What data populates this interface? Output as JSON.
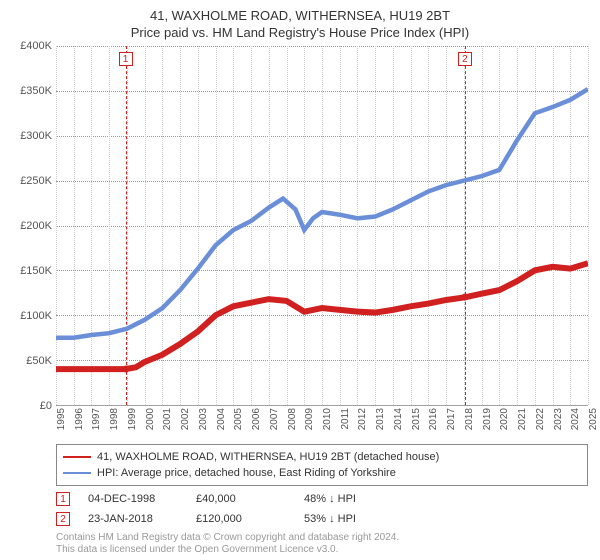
{
  "title_line1": "41, WAXHOLME ROAD, WITHERNSEA, HU19 2BT",
  "title_line2": "Price paid vs. HM Land Registry's House Price Index (HPI)",
  "chart": {
    "type": "line",
    "background_color": "#ffffff",
    "grid_color": "#cccccc",
    "grid_h_color": "#999999",
    "text_color": "#555555",
    "y_axis": {
      "min": 0,
      "max": 400000,
      "tick_step": 50000,
      "ticks": [
        "£0",
        "£50K",
        "£100K",
        "£150K",
        "£200K",
        "£250K",
        "£300K",
        "£350K",
        "£400K"
      ]
    },
    "x_axis": {
      "min": 1995,
      "max": 2025,
      "ticks": [
        1995,
        1996,
        1997,
        1998,
        1999,
        2000,
        2001,
        2002,
        2003,
        2004,
        2005,
        2006,
        2007,
        2008,
        2009,
        2010,
        2011,
        2012,
        2013,
        2014,
        2015,
        2016,
        2017,
        2018,
        2019,
        2020,
        2021,
        2022,
        2023,
        2024,
        2025
      ]
    },
    "series": [
      {
        "name": "price_paid",
        "label": "41, WAXHOLME ROAD, WITHERNSEA, HU19 2BT (detached house)",
        "color": "#d02020",
        "line_width": 2,
        "data": [
          [
            1995,
            40000
          ],
          [
            1996,
            40000
          ],
          [
            1997,
            40000
          ],
          [
            1998,
            40000
          ],
          [
            1998.9,
            40000
          ],
          [
            1999.5,
            42000
          ],
          [
            2000,
            48000
          ],
          [
            2001,
            56000
          ],
          [
            2002,
            68000
          ],
          [
            2003,
            82000
          ],
          [
            2004,
            100000
          ],
          [
            2005,
            110000
          ],
          [
            2006,
            114000
          ],
          [
            2007,
            118000
          ],
          [
            2008,
            116000
          ],
          [
            2009,
            104000
          ],
          [
            2010,
            108000
          ],
          [
            2011,
            106000
          ],
          [
            2012,
            104000
          ],
          [
            2013,
            103000
          ],
          [
            2014,
            106000
          ],
          [
            2015,
            110000
          ],
          [
            2016,
            113000
          ],
          [
            2017,
            117000
          ],
          [
            2018.06,
            120000
          ],
          [
            2019,
            124000
          ],
          [
            2020,
            128000
          ],
          [
            2021,
            138000
          ],
          [
            2022,
            150000
          ],
          [
            2023,
            154000
          ],
          [
            2024,
            152000
          ],
          [
            2025,
            158000
          ]
        ]
      },
      {
        "name": "hpi",
        "label": "HPI: Average price, detached house, East Riding of Yorkshire",
        "color": "#6a8fd8",
        "line_width": 1.5,
        "data": [
          [
            1995,
            75000
          ],
          [
            1996,
            75000
          ],
          [
            1997,
            78000
          ],
          [
            1998,
            80000
          ],
          [
            1999,
            85000
          ],
          [
            2000,
            95000
          ],
          [
            2001,
            108000
          ],
          [
            2002,
            128000
          ],
          [
            2003,
            152000
          ],
          [
            2004,
            178000
          ],
          [
            2005,
            195000
          ],
          [
            2006,
            205000
          ],
          [
            2007,
            220000
          ],
          [
            2007.8,
            230000
          ],
          [
            2008.5,
            218000
          ],
          [
            2009,
            195000
          ],
          [
            2009.5,
            208000
          ],
          [
            2010,
            215000
          ],
          [
            2011,
            212000
          ],
          [
            2012,
            208000
          ],
          [
            2013,
            210000
          ],
          [
            2014,
            218000
          ],
          [
            2015,
            228000
          ],
          [
            2016,
            238000
          ],
          [
            2017,
            245000
          ],
          [
            2018,
            250000
          ],
          [
            2019,
            255000
          ],
          [
            2020,
            262000
          ],
          [
            2021,
            295000
          ],
          [
            2022,
            325000
          ],
          [
            2023,
            332000
          ],
          [
            2024,
            340000
          ],
          [
            2025,
            352000
          ]
        ]
      }
    ],
    "sale_markers": [
      {
        "id": "1",
        "year": 1998.92,
        "price": 40000
      },
      {
        "id": "2",
        "year": 2018.06,
        "price": 120000
      }
    ],
    "marker_style": {
      "border_color": "#d02020",
      "text_color": "#d02020",
      "line_dash": "4,3"
    }
  },
  "legend": {
    "border_color": "#888888",
    "items": [
      {
        "color": "#d02020",
        "label": "41, WAXHOLME ROAD, WITHERNSEA, HU19 2BT (detached house)"
      },
      {
        "color": "#6a8fd8",
        "label": "HPI: Average price, detached house, East Riding of Yorkshire"
      }
    ]
  },
  "sale_rows": [
    {
      "badge": "1",
      "date": "04-DEC-1998",
      "price": "£40,000",
      "pct": "48% ↓ HPI"
    },
    {
      "badge": "2",
      "date": "23-JAN-2018",
      "price": "£120,000",
      "pct": "53% ↓ HPI"
    }
  ],
  "footer_line1": "Contains HM Land Registry data © Crown copyright and database right 2024.",
  "footer_line2": "This data is licensed under the Open Government Licence v3.0."
}
